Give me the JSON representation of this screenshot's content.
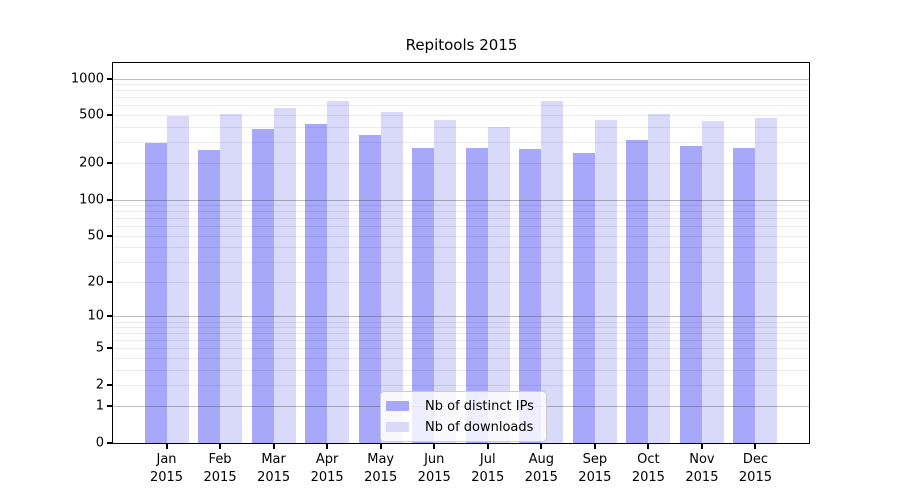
{
  "chart_data": {
    "type": "bar",
    "title": "Repitools 2015",
    "categories": [
      "Jan",
      "Feb",
      "Mar",
      "Apr",
      "May",
      "Jun",
      "Jul",
      "Aug",
      "Sep",
      "Oct",
      "Nov",
      "Dec"
    ],
    "category_year": "2015",
    "series": [
      {
        "name": "Nb of distinct IPs",
        "color": "#a8a8fa",
        "values": [
          294,
          257,
          382,
          425,
          343,
          267,
          266,
          261,
          245,
          313,
          279,
          267
        ]
      },
      {
        "name": "Nb of downloads",
        "color": "#d9d9fa",
        "values": [
          493,
          514,
          576,
          652,
          532,
          451,
          399,
          652,
          454,
          505,
          450,
          474
        ]
      }
    ],
    "y_ticks": [
      1000,
      500,
      200,
      100,
      50,
      20,
      10,
      5,
      2,
      1,
      0
    ],
    "y_scale": "log1p",
    "ylim": [
      0,
      1320
    ],
    "grid": true,
    "legend_position": "lower center",
    "axis_color": "#000000",
    "major_gridline_color": "#bdbdbd",
    "minor_gridline_color": "#e8e8e8"
  }
}
